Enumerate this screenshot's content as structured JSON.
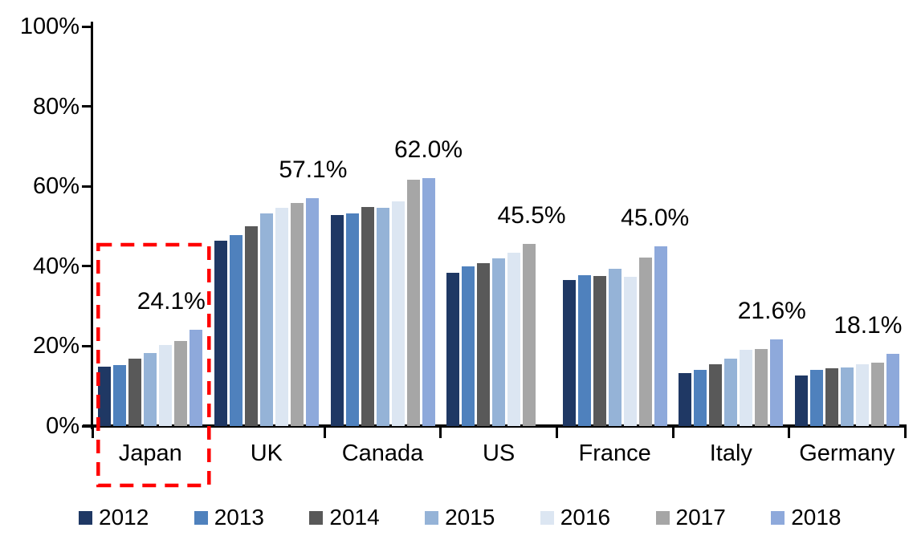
{
  "chart_data": {
    "type": "bar",
    "title": "",
    "xlabel": "",
    "ylabel": "",
    "categories": [
      "Japan",
      "UK",
      "Canada",
      "US",
      "France",
      "Italy",
      "Germany"
    ],
    "series": [
      {
        "name": "2012",
        "color": "#1F3864",
        "values": [
          14.9,
          46.3,
          52.9,
          38.3,
          36.5,
          13.3,
          12.6
        ]
      },
      {
        "name": "2013",
        "color": "#4F81BD",
        "values": [
          15.2,
          47.8,
          53.3,
          39.9,
          37.7,
          14.1,
          14.1
        ]
      },
      {
        "name": "2014",
        "color": "#595959",
        "values": [
          16.8,
          49.9,
          54.8,
          40.8,
          37.6,
          15.4,
          14.4
        ]
      },
      {
        "name": "2015",
        "color": "#95B3D7",
        "values": [
          18.3,
          53.3,
          54.6,
          41.9,
          39.3,
          16.8,
          14.7
        ]
      },
      {
        "name": "2016",
        "color": "#DCE6F2",
        "values": [
          20.3,
          54.7,
          56.2,
          43.4,
          37.3,
          19.0,
          15.5
        ]
      },
      {
        "name": "2017",
        "color": "#A6A6A6",
        "values": [
          21.3,
          55.8,
          61.6,
          45.5,
          42.2,
          19.2,
          15.9
        ]
      },
      {
        "name": "2018",
        "color": "#8EA9DB",
        "values": [
          24.1,
          57.1,
          62.0,
          null,
          45.0,
          21.6,
          18.1
        ]
      }
    ],
    "annotations": [
      {
        "category": "Japan",
        "text": "24.1%"
      },
      {
        "category": "UK",
        "text": "57.1%"
      },
      {
        "category": "Canada",
        "text": "62.0%"
      },
      {
        "category": "US",
        "text": "45.5%"
      },
      {
        "category": "France",
        "text": "45.0%"
      },
      {
        "category": "Italy",
        "text": "21.6%"
      },
      {
        "category": "Germany",
        "text": "18.1%"
      }
    ],
    "ylim": [
      0,
      100
    ],
    "yticks": [
      "0%",
      "20%",
      "40%",
      "60%",
      "80%",
      "100%"
    ],
    "grid": false,
    "legend_position": "bottom",
    "legend_labels": [
      "2012",
      "2013",
      "2014",
      "2015",
      "2016",
      "2017",
      "2018"
    ],
    "highlight": {
      "category": "Japan",
      "style": "red-dashed-box",
      "color": "#FF0000"
    },
    "axis_color": "#000000"
  }
}
